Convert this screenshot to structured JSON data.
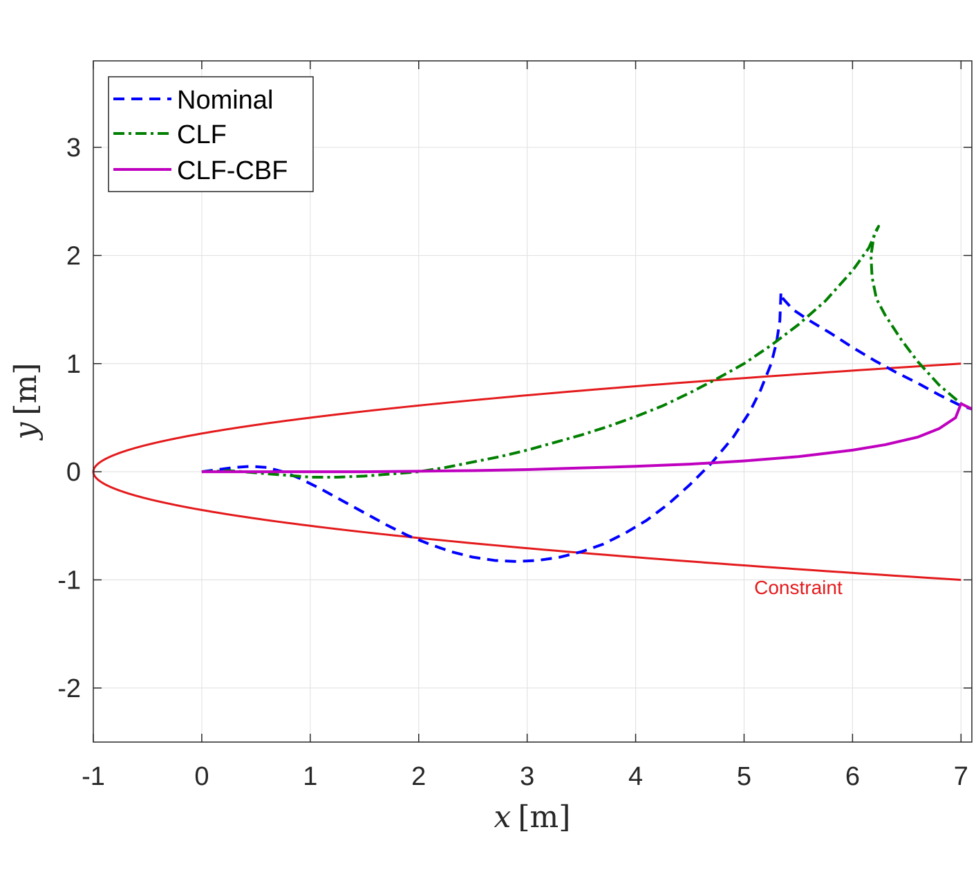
{
  "chart_data": {
    "type": "line",
    "title": "",
    "xlabel": {
      "var": "x",
      "unit": "[m]"
    },
    "ylabel": {
      "var": "y",
      "unit": "[m]"
    },
    "xlim": [
      -1,
      7.1
    ],
    "ylim": [
      -2.5,
      3.8
    ],
    "x_ticks": [
      -1,
      0,
      1,
      2,
      3,
      4,
      5,
      6,
      7
    ],
    "y_ticks": [
      -2,
      -1,
      0,
      1,
      2,
      3
    ],
    "grid": true,
    "legend_position": "top-left",
    "annotation": {
      "text": "Constraint",
      "x": 5.5,
      "y": -1.13,
      "color": "#e41a1c"
    },
    "constraint": {
      "name": "Constraint",
      "color": "#e41a1c",
      "style": "solid",
      "equation": "x = -1 + 8*y^2, from (7,1) through (-1,0) to (7,-1)"
    },
    "series": [
      {
        "name": "Nominal",
        "color": "#0000ff",
        "style": "dashed",
        "x": [
          0,
          0.15,
          0.3,
          0.45,
          0.6,
          0.75,
          0.9,
          1.1,
          1.3,
          1.5,
          1.7,
          1.9,
          2.1,
          2.3,
          2.5,
          2.7,
          2.9,
          3.1,
          3.3,
          3.5,
          3.7,
          3.9,
          4.1,
          4.3,
          4.5,
          4.7,
          4.9,
          5.05,
          5.15,
          5.25,
          5.3,
          5.33,
          5.34,
          5.36,
          5.45,
          5.6,
          5.8,
          6.0,
          6.2,
          6.4,
          6.6,
          6.8,
          7.0,
          7.1
        ],
        "y": [
          0,
          0.02,
          0.04,
          0.05,
          0.04,
          0.0,
          -0.06,
          -0.16,
          -0.27,
          -0.38,
          -0.49,
          -0.59,
          -0.67,
          -0.74,
          -0.79,
          -0.82,
          -0.83,
          -0.82,
          -0.79,
          -0.74,
          -0.67,
          -0.57,
          -0.45,
          -0.3,
          -0.12,
          0.08,
          0.32,
          0.55,
          0.75,
          1.0,
          1.2,
          1.4,
          1.66,
          1.6,
          1.5,
          1.4,
          1.28,
          1.15,
          1.03,
          0.92,
          0.82,
          0.71,
          0.61,
          0.58
        ]
      },
      {
        "name": "CLF",
        "color": "#007f00",
        "style": "dashdot",
        "x": [
          0,
          0.25,
          0.5,
          0.75,
          1.0,
          1.25,
          1.5,
          1.75,
          2.0,
          2.25,
          2.5,
          2.75,
          3.0,
          3.25,
          3.5,
          3.75,
          4.0,
          4.25,
          4.5,
          4.75,
          5.0,
          5.25,
          5.5,
          5.75,
          6.0,
          6.15,
          6.24,
          6.2,
          6.17,
          6.18,
          6.22,
          6.3,
          6.45,
          6.6,
          6.8,
          7.0,
          7.1
        ],
        "y": [
          0,
          0.01,
          -0.01,
          -0.03,
          -0.05,
          -0.05,
          -0.04,
          -0.02,
          0.0,
          0.04,
          0.09,
          0.14,
          0.2,
          0.27,
          0.34,
          0.42,
          0.51,
          0.61,
          0.73,
          0.86,
          1.0,
          1.17,
          1.36,
          1.58,
          1.86,
          2.07,
          2.27,
          2.2,
          2.0,
          1.8,
          1.6,
          1.45,
          1.22,
          1.02,
          0.8,
          0.63,
          0.58
        ]
      },
      {
        "name": "CLF-CBF",
        "color": "#bf00bf",
        "style": "solid",
        "x": [
          0,
          0.5,
          1.0,
          1.5,
          2.0,
          2.5,
          3.0,
          3.5,
          4.0,
          4.5,
          5.0,
          5.5,
          6.0,
          6.3,
          6.6,
          6.8,
          6.95,
          7.0,
          7.1
        ],
        "y": [
          0,
          0.0,
          0.0,
          0.0,
          0.005,
          0.01,
          0.02,
          0.035,
          0.05,
          0.07,
          0.1,
          0.14,
          0.2,
          0.25,
          0.32,
          0.4,
          0.5,
          0.63,
          0.58
        ]
      }
    ]
  }
}
